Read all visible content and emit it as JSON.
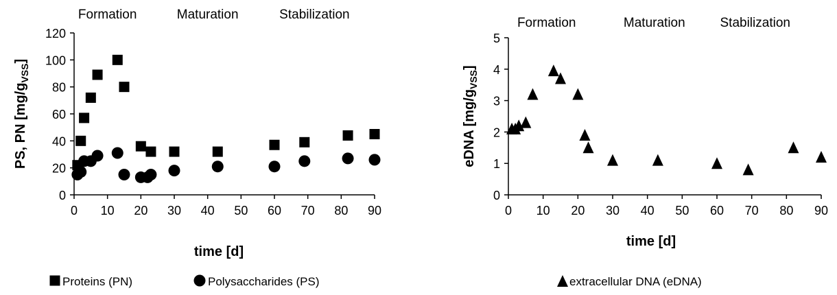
{
  "chart_data": [
    {
      "type": "scatter",
      "title": "",
      "xlabel": "time [d]",
      "ylabel": "PS, PN [mg/gVSS]",
      "ylabel_main": "PS, PN [mg/g",
      "ylabel_sub": "VSS",
      "ylabel_end": "]",
      "xlim": [
        0,
        90
      ],
      "ylim": [
        0,
        120
      ],
      "xticks": [
        0,
        10,
        20,
        30,
        40,
        50,
        60,
        70,
        80,
        90
      ],
      "yticks": [
        0,
        20,
        40,
        60,
        80,
        100,
        120
      ],
      "grid": false,
      "legend_position": "bottom",
      "phases": [
        {
          "label": "Formation",
          "x": 10
        },
        {
          "label": "Maturation",
          "x": 40
        },
        {
          "label": "Stabilization",
          "x": 72
        }
      ],
      "series": [
        {
          "name": "Proteins (PN)",
          "marker": "square",
          "points": [
            [
              1,
              22
            ],
            [
              2,
              40
            ],
            [
              3,
              57
            ],
            [
              5,
              72
            ],
            [
              7,
              89
            ],
            [
              13,
              100
            ],
            [
              15,
              80
            ],
            [
              20,
              36
            ],
            [
              23,
              32
            ],
            [
              30,
              32
            ],
            [
              43,
              32
            ],
            [
              60,
              37
            ],
            [
              69,
              39
            ],
            [
              82,
              44
            ],
            [
              90,
              45
            ]
          ]
        },
        {
          "name": "Polysaccharides (PS)",
          "marker": "circle",
          "points": [
            [
              1,
              15
            ],
            [
              2,
              17
            ],
            [
              3,
              25
            ],
            [
              5,
              25
            ],
            [
              7,
              29
            ],
            [
              13,
              31
            ],
            [
              15,
              15
            ],
            [
              20,
              13
            ],
            [
              22,
              13
            ],
            [
              23,
              15
            ],
            [
              30,
              18
            ],
            [
              43,
              21
            ],
            [
              60,
              21
            ],
            [
              69,
              25
            ],
            [
              82,
              27
            ],
            [
              90,
              26
            ]
          ]
        }
      ]
    },
    {
      "type": "scatter",
      "title": "",
      "xlabel": "time [d]",
      "ylabel": "eDNA [mg/gVSS]",
      "ylabel_main": "eDNA [mg/g",
      "ylabel_sub": "VSS",
      "ylabel_end": "]",
      "xlim": [
        0,
        90
      ],
      "ylim": [
        0,
        5
      ],
      "xticks": [
        0,
        10,
        20,
        30,
        40,
        50,
        60,
        70,
        80,
        90
      ],
      "yticks": [
        0,
        1,
        2,
        3,
        4,
        5
      ],
      "grid": false,
      "legend_position": "bottom",
      "phases": [
        {
          "label": "Formation",
          "x": 11
        },
        {
          "label": "Maturation",
          "x": 42
        },
        {
          "label": "Stabilization",
          "x": 71
        }
      ],
      "series": [
        {
          "name": "extracellular DNA (eDNA)",
          "marker": "triangle",
          "points": [
            [
              1,
              2.1
            ],
            [
              2,
              2.1
            ],
            [
              3,
              2.2
            ],
            [
              5,
              2.3
            ],
            [
              7,
              3.2
            ],
            [
              13,
              3.95
            ],
            [
              15,
              3.7
            ],
            [
              20,
              3.2
            ],
            [
              22,
              1.9
            ],
            [
              23,
              1.5
            ],
            [
              30,
              1.1
            ],
            [
              43,
              1.1
            ],
            [
              60,
              1.0
            ],
            [
              69,
              0.8
            ],
            [
              82,
              1.5
            ],
            [
              90,
              1.2
            ]
          ]
        }
      ]
    }
  ],
  "legend": {
    "left": [
      {
        "label": "Proteins (PN)",
        "marker": "square"
      },
      {
        "label": "Polysaccharides (PS)",
        "marker": "circle"
      }
    ],
    "right": [
      {
        "label": "extracellular DNA (eDNA)",
        "marker": "triangle"
      }
    ]
  },
  "colors": {
    "marker": "#000000",
    "axis": "#000000",
    "background": "#ffffff"
  }
}
